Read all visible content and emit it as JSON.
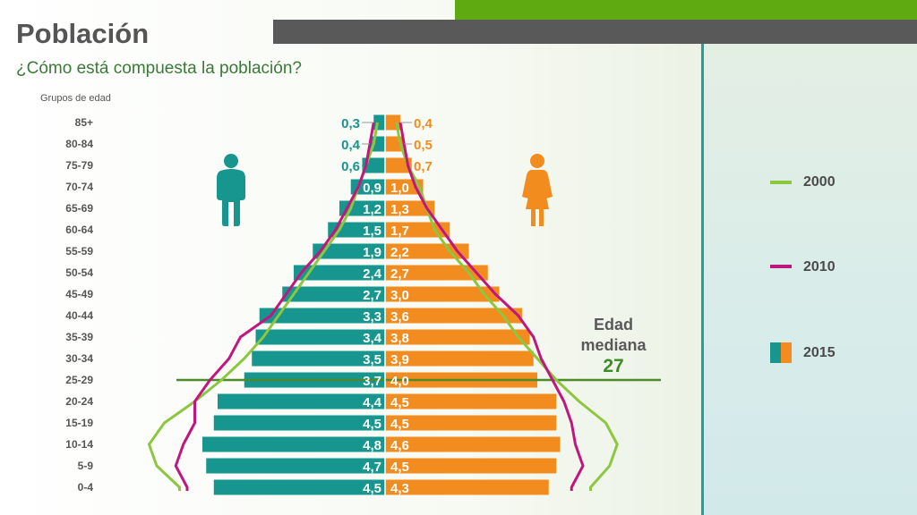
{
  "title": "Población",
  "subtitle": "¿Cómo está compuesta la población?",
  "age_group_header": "Grupos de edad",
  "colors": {
    "male": "#17958f",
    "female": "#f28c1e",
    "line_2000": "#8dc63f",
    "line_2010": "#c0177e",
    "median_line": "#4c8a2a",
    "top_green": "#5faa10",
    "top_gray": "#595959",
    "right_bar": "#1ba39c",
    "median_value": "#3e8a27"
  },
  "median": {
    "label_line1": "Edad",
    "label_line2": "mediana",
    "value": "27",
    "age_group_index": 12
  },
  "legend": [
    {
      "label": "2000",
      "type": "line",
      "color": "#8dc63f"
    },
    {
      "label": "2010",
      "type": "line",
      "color": "#c0177e"
    },
    {
      "label": "2015",
      "type": "bars"
    }
  ],
  "chart_data": {
    "type": "bar",
    "orientation": "horizontal-population-pyramid",
    "categories": [
      "85+",
      "80-84",
      "75-79",
      "70-74",
      "65-69",
      "60-64",
      "55-59",
      "50-54",
      "45-49",
      "40-44",
      "35-39",
      "30-34",
      "25-29",
      "20-24",
      "15-19",
      "10-14",
      "5-9",
      "0-4"
    ],
    "series": [
      {
        "name": "Hombres 2015",
        "side": "left",
        "values": [
          "0,3",
          "0,4",
          "0,6",
          "0,9",
          "1,2",
          "1,5",
          "1,9",
          "2,4",
          "2,7",
          "3,3",
          "3,4",
          "3,5",
          "3,7",
          "4,4",
          "4,5",
          "4,8",
          "4,7",
          "4,5"
        ]
      },
      {
        "name": "Mujeres 2015",
        "side": "right",
        "values": [
          "0,4",
          "0,5",
          "0,7",
          "1,0",
          "1,3",
          "1,7",
          "2,2",
          "2,7",
          "3,0",
          "3,6",
          "3,8",
          "3,9",
          "4,0",
          "4,5",
          "4,5",
          "4,6",
          "4,5",
          "4,3"
        ]
      }
    ],
    "lines": [
      {
        "name": "2000",
        "male": [
          0.2,
          0.3,
          0.5,
          0.7,
          0.9,
          1.2,
          1.6,
          2.0,
          2.4,
          2.8,
          3.2,
          3.7,
          4.3,
          5.0,
          5.8,
          6.2,
          6.0,
          5.4
        ],
        "female": [
          0.3,
          0.4,
          0.6,
          0.9,
          1.1,
          1.3,
          1.7,
          2.2,
          2.6,
          3.1,
          3.5,
          4.0,
          4.5,
          5.1,
          5.8,
          6.1,
          5.9,
          5.4
        ]
      },
      {
        "name": "2010",
        "male": [
          0.3,
          0.4,
          0.5,
          0.7,
          1.0,
          1.3,
          1.7,
          2.2,
          2.6,
          3.0,
          3.8,
          4.1,
          4.6,
          5.0,
          5.0,
          5.3,
          5.5,
          5.2
        ],
        "female": [
          0.4,
          0.5,
          0.6,
          0.8,
          1.1,
          1.5,
          1.9,
          2.4,
          2.9,
          3.5,
          3.9,
          4.1,
          4.4,
          4.7,
          4.9,
          5.0,
          5.2,
          4.9
        ]
      }
    ],
    "xlabel": "",
    "ylabel": "Grupos de edad"
  }
}
